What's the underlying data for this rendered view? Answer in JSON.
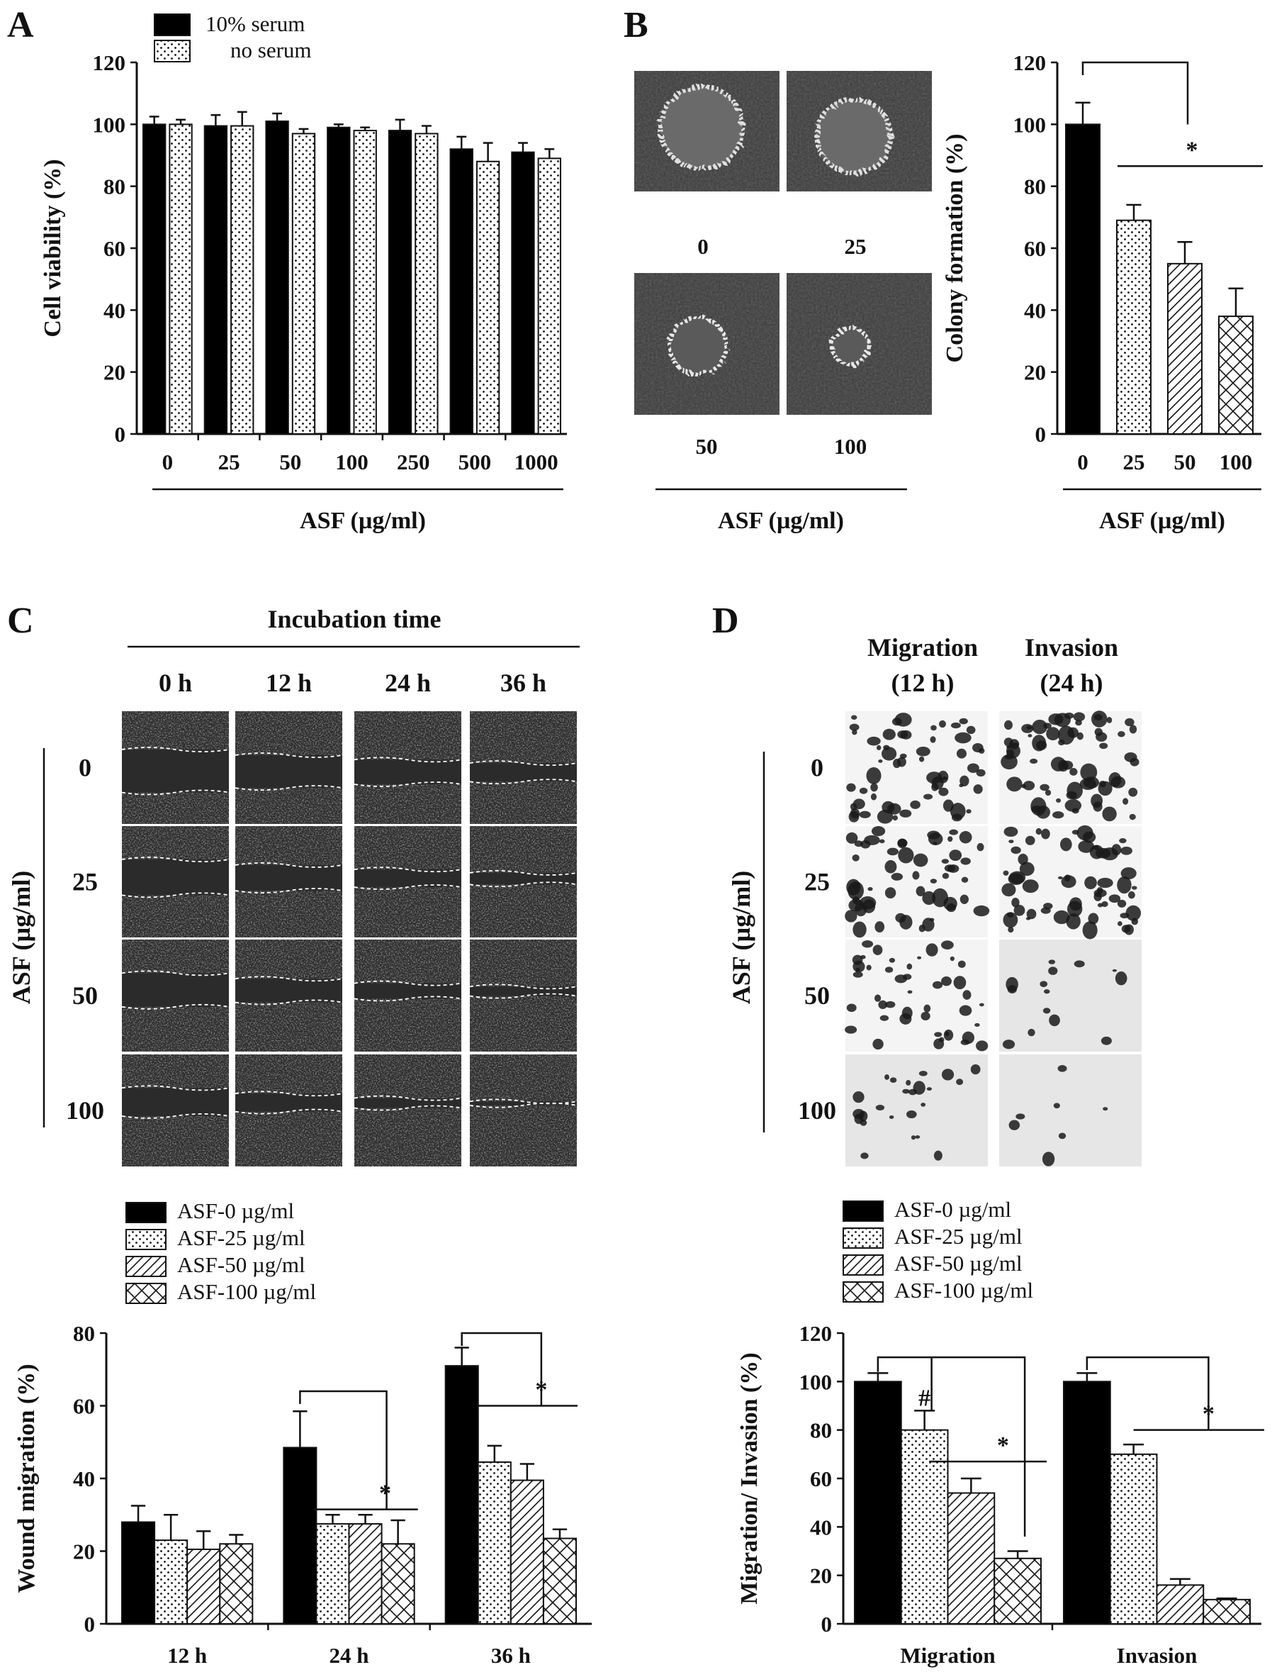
{
  "panels": {
    "A": {
      "label": "A"
    },
    "B": {
      "label": "B",
      "image_labels": [
        "0",
        "25",
        "50",
        "100"
      ],
      "image_xlabel": "ASF (µg/ml)"
    },
    "C": {
      "label": "C",
      "header": "Incubation time",
      "columns": [
        "0 h",
        "12 h",
        "24 h",
        "36 h"
      ],
      "rows": [
        "0",
        "25",
        "50",
        "100"
      ],
      "row_axis_label": "ASF (µg/ml)"
    },
    "D": {
      "label": "D",
      "columns": [
        {
          "line1": "Migration",
          "line2": "(12 h)"
        },
        {
          "line1": "Invasion",
          "line2": "(24 h)"
        }
      ],
      "rows": [
        "0",
        "25",
        "50",
        "100"
      ],
      "row_axis_label": "ASF (µg/ml)"
    }
  },
  "colors": {
    "bar_fill": "#000000",
    "pattern_ink": "#111111",
    "micro_bg": "#3a3a3a",
    "micro_cells": "#dcdcdc",
    "wound_bg": "#2b2b2b",
    "transwell_bg": "#f4f4f4",
    "transwell_cells": "#1a1a1a"
  },
  "chart_data": [
    {
      "id": "A",
      "type": "bar",
      "categories": [
        "0",
        "25",
        "50",
        "100",
        "250",
        "500",
        "1000"
      ],
      "series": [
        {
          "name": "10% serum",
          "pattern": "solid",
          "values": [
            100,
            99.5,
            101,
            99,
            98,
            92,
            91
          ],
          "errors": [
            2.5,
            3.5,
            2.5,
            1,
            3.5,
            4,
            3
          ]
        },
        {
          "name": "no serum",
          "pattern": "dots",
          "values": [
            100,
            99.5,
            97,
            98,
            97,
            88,
            89
          ],
          "errors": [
            1.5,
            4.5,
            1.5,
            1,
            2.5,
            6,
            3
          ]
        }
      ],
      "xlabel": "ASF (µg/ml)",
      "ylabel": "Cell viability (%)",
      "ylim": [
        0,
        120
      ],
      "yticks": [
        0,
        20,
        40,
        60,
        80,
        100,
        120
      ],
      "legend_position": "top"
    },
    {
      "id": "B",
      "type": "bar",
      "categories": [
        "0",
        "25",
        "50",
        "100"
      ],
      "values": [
        100,
        69,
        55,
        38
      ],
      "errors": [
        7,
        5,
        7,
        9
      ],
      "patterns": [
        "solid",
        "dots",
        "hatch",
        "cross"
      ],
      "xlabel": "ASF (µg/ml)",
      "ylabel": "Colony formation (%)",
      "ylim": [
        0,
        120
      ],
      "yticks": [
        0,
        20,
        40,
        60,
        80,
        100,
        120
      ],
      "annotations": [
        "*"
      ]
    },
    {
      "id": "C",
      "type": "bar",
      "categories": [
        "12 h",
        "24 h",
        "36 h"
      ],
      "series": [
        {
          "name": "ASF-0 µg/ml",
          "pattern": "solid",
          "values": [
            28,
            48.5,
            71
          ],
          "errors": [
            4.5,
            10,
            5
          ]
        },
        {
          "name": "ASF-25 µg/ml",
          "pattern": "dots",
          "values": [
            23,
            27.5,
            44.5
          ],
          "errors": [
            7,
            2.5,
            4.5
          ]
        },
        {
          "name": "ASF-50 µg/ml",
          "pattern": "hatch",
          "values": [
            20.5,
            27.5,
            39.5
          ],
          "errors": [
            5,
            2.5,
            4.5
          ]
        },
        {
          "name": "ASF-100 µg/ml",
          "pattern": "cross",
          "values": [
            22,
            22,
            23.5
          ],
          "errors": [
            2.5,
            6.5,
            2.5
          ]
        }
      ],
      "ylabel": "Wound migration (%)",
      "ylim": [
        0,
        80
      ],
      "yticks": [
        0,
        20,
        40,
        60,
        80
      ],
      "legend_position": "top",
      "annotations": [
        "*",
        "*"
      ]
    },
    {
      "id": "D",
      "type": "bar",
      "categories": [
        "Migration",
        "Invasion"
      ],
      "series": [
        {
          "name": "ASF-0 µg/ml",
          "pattern": "solid",
          "values": [
            100,
            100
          ],
          "errors": [
            3.5,
            3.5
          ]
        },
        {
          "name": "ASF-25 µg/ml",
          "pattern": "dots",
          "values": [
            80,
            70
          ],
          "errors": [
            8,
            4
          ]
        },
        {
          "name": "ASF-50 µg/ml",
          "pattern": "hatch",
          "values": [
            54,
            16
          ],
          "errors": [
            6,
            2.5
          ]
        },
        {
          "name": "ASF-100 µg/ml",
          "pattern": "cross",
          "values": [
            27,
            10
          ],
          "errors": [
            3,
            0.5
          ]
        }
      ],
      "ylabel": "Migration/ Invasion (%)",
      "ylim": [
        0,
        120
      ],
      "yticks": [
        0,
        20,
        40,
        60,
        80,
        100,
        120
      ],
      "legend_position": "top",
      "annotations": [
        "#",
        "*",
        "*"
      ]
    }
  ]
}
